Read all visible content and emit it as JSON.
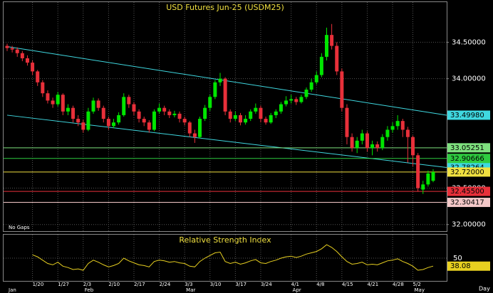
{
  "chart_data": [
    {
      "type": "candlestick",
      "title": "USD Futures Jun-25 (USDM25)",
      "note": "No Gaps",
      "xlabel": "Day",
      "up_color": "#00e600",
      "down_color": "#e8303a",
      "open": [
        34.45,
        34.42,
        34.4,
        34.35,
        34.28,
        34.22,
        34.1,
        33.95,
        33.8,
        33.7,
        33.65,
        33.78,
        33.55,
        33.6,
        33.45,
        33.4,
        33.3,
        33.55,
        33.7,
        33.6,
        33.45,
        33.35,
        33.4,
        33.5,
        33.75,
        33.65,
        33.55,
        33.45,
        33.4,
        33.3,
        33.55,
        33.6,
        33.55,
        33.5,
        33.52,
        33.45,
        33.4,
        33.25,
        33.2,
        33.45,
        33.6,
        33.75,
        33.95,
        34.0,
        33.55,
        33.45,
        33.5,
        33.4,
        33.45,
        33.55,
        33.6,
        33.45,
        33.4,
        33.5,
        33.55,
        33.65,
        33.7,
        33.72,
        33.68,
        33.75,
        33.85,
        33.95,
        34.05,
        34.3,
        34.6,
        34.45,
        34.1,
        33.6,
        33.2,
        33.05,
        33.15,
        33.25,
        33.05,
        33.1,
        33.05,
        33.2,
        33.3,
        33.35,
        33.42,
        33.3,
        33.2,
        32.95,
        32.48,
        32.55,
        32.6
      ],
      "high": [
        34.48,
        34.45,
        34.43,
        34.38,
        34.32,
        34.25,
        34.12,
        33.98,
        33.84,
        33.74,
        33.82,
        33.8,
        33.65,
        33.63,
        33.5,
        33.44,
        33.6,
        33.74,
        33.73,
        33.63,
        33.48,
        33.45,
        33.54,
        33.8,
        33.78,
        33.68,
        33.58,
        33.48,
        33.43,
        33.58,
        33.66,
        33.63,
        33.58,
        33.56,
        33.55,
        33.48,
        33.42,
        33.3,
        33.48,
        33.64,
        33.78,
        33.98,
        34.08,
        34.02,
        33.58,
        33.55,
        33.53,
        33.5,
        33.58,
        33.66,
        33.63,
        33.48,
        33.53,
        33.58,
        33.68,
        33.76,
        33.78,
        33.75,
        33.78,
        33.88,
        34.0,
        34.1,
        34.35,
        34.7,
        34.75,
        34.5,
        34.14,
        33.65,
        33.25,
        33.2,
        33.3,
        33.28,
        33.15,
        33.14,
        33.24,
        33.35,
        33.4,
        33.5,
        33.45,
        33.34,
        33.22,
        32.98,
        32.6,
        32.74,
        32.76
      ],
      "low": [
        34.38,
        34.36,
        34.3,
        34.24,
        34.18,
        34.05,
        33.9,
        33.75,
        33.66,
        33.6,
        33.62,
        33.5,
        33.5,
        33.4,
        33.35,
        33.26,
        33.28,
        33.52,
        33.56,
        33.4,
        33.3,
        33.32,
        33.37,
        33.48,
        33.6,
        33.5,
        33.4,
        33.35,
        33.26,
        33.28,
        33.52,
        33.5,
        33.46,
        33.47,
        33.4,
        33.36,
        33.2,
        33.12,
        33.18,
        33.42,
        33.56,
        33.72,
        33.9,
        33.5,
        33.4,
        33.42,
        33.36,
        33.37,
        33.42,
        33.52,
        33.4,
        33.37,
        33.38,
        33.46,
        33.52,
        33.62,
        33.66,
        33.64,
        33.66,
        33.72,
        33.82,
        33.92,
        34.02,
        34.25,
        34.4,
        34.05,
        33.55,
        33.1,
        33.0,
        32.98,
        33.1,
        33.0,
        32.95,
        33.0,
        33.02,
        33.15,
        33.26,
        33.3,
        33.2,
        32.85,
        32.8,
        32.45,
        32.42,
        32.52,
        32.58
      ],
      "close": [
        34.42,
        34.4,
        34.35,
        34.28,
        34.22,
        34.1,
        33.95,
        33.8,
        33.7,
        33.65,
        33.78,
        33.55,
        33.6,
        33.45,
        33.4,
        33.3,
        33.55,
        33.7,
        33.6,
        33.45,
        33.35,
        33.4,
        33.5,
        33.75,
        33.65,
        33.55,
        33.45,
        33.4,
        33.3,
        33.55,
        33.6,
        33.55,
        33.5,
        33.52,
        33.45,
        33.4,
        33.25,
        33.2,
        33.45,
        33.6,
        33.75,
        33.95,
        34.0,
        33.55,
        33.45,
        33.5,
        33.4,
        33.45,
        33.55,
        33.6,
        33.45,
        33.4,
        33.5,
        33.55,
        33.65,
        33.7,
        33.72,
        33.68,
        33.75,
        33.85,
        33.95,
        34.05,
        34.3,
        34.6,
        34.45,
        34.1,
        33.6,
        33.2,
        33.05,
        33.15,
        33.25,
        33.05,
        33.1,
        33.05,
        33.2,
        33.3,
        33.35,
        33.42,
        33.3,
        33.2,
        32.95,
        32.5,
        32.55,
        32.7,
        32.72
      ],
      "ylim": [
        31.9,
        35.05
      ],
      "yticks": [
        {
          "value": 32,
          "label": "32.00000"
        },
        {
          "value": 32.5,
          "label": "32.50000"
        },
        {
          "value": 34,
          "label": "34.00000"
        },
        {
          "value": 34.5,
          "label": "34.50000"
        }
      ],
      "xticks": [
        {
          "value": 5,
          "label": "1/20"
        },
        {
          "value": 10,
          "label": "1/27"
        },
        {
          "value": 15,
          "label": "2/3"
        },
        {
          "value": 20,
          "label": "2/10"
        },
        {
          "value": 25,
          "label": "2/17"
        },
        {
          "value": 30,
          "label": "2/24"
        },
        {
          "value": 35,
          "label": "3/3"
        },
        {
          "value": 40,
          "label": "3/10"
        },
        {
          "value": 45,
          "label": "3/17"
        },
        {
          "value": 50,
          "label": "3/24"
        },
        {
          "value": 56,
          "label": "4/1"
        },
        {
          "value": 61,
          "label": "4/8"
        },
        {
          "value": 66,
          "label": "4/15"
        },
        {
          "value": 71,
          "label": "4/21"
        },
        {
          "value": 76,
          "label": "4/28"
        },
        {
          "value": 80,
          "label": "5/2"
        }
      ],
      "month_ticks": [
        {
          "value": 0,
          "label": "Jan"
        },
        {
          "value": 15,
          "label": "Feb"
        },
        {
          "value": 35,
          "label": "Mar"
        },
        {
          "value": 56,
          "label": "Apr"
        },
        {
          "value": 80,
          "label": "May"
        }
      ],
      "trendlines": [
        {
          "color": "#3fd8e0",
          "start": 34.44,
          "end": {
            "value": 33.4998,
            "label": "33.49980"
          }
        },
        {
          "color": "#3fd8e0",
          "start": 33.5,
          "end": {
            "value": 32.78264,
            "label": "32.78264"
          }
        }
      ],
      "levels": [
        {
          "value": 33.05251,
          "color": "#7ee07e"
        },
        {
          "value": 32.90666,
          "color": "#2ecc40"
        },
        {
          "value": 32.72,
          "label": "32.72000",
          "color": "#f0e040"
        },
        {
          "value": 32.455,
          "label": "32.45500",
          "color": "#e8303a"
        },
        {
          "value": 32.30417,
          "color": "#f4c8c8"
        }
      ],
      "grid": true
    },
    {
      "type": "line",
      "title": "Relative Strength Index",
      "color": "#e8d020",
      "values": [
        null,
        null,
        null,
        null,
        null,
        55,
        52,
        47,
        42,
        40,
        44,
        38,
        36,
        33,
        34,
        32,
        42,
        47,
        44,
        40,
        37,
        39,
        42,
        50,
        46,
        43,
        40,
        39,
        37,
        45,
        47,
        46,
        44,
        45,
        43,
        42,
        38,
        37,
        45,
        50,
        54,
        58,
        59,
        45,
        42,
        44,
        41,
        43,
        46,
        48,
        43,
        42,
        45,
        47,
        50,
        52,
        53,
        51,
        53,
        56,
        58,
        60,
        64,
        70,
        66,
        60,
        52,
        45,
        41,
        42,
        44,
        40,
        41,
        40,
        43,
        46,
        47,
        49,
        45,
        42,
        38,
        32,
        33,
        36,
        38.08
      ],
      "ylim": [
        15,
        85
      ],
      "yticks": [
        50
      ],
      "grid": true
    }
  ]
}
